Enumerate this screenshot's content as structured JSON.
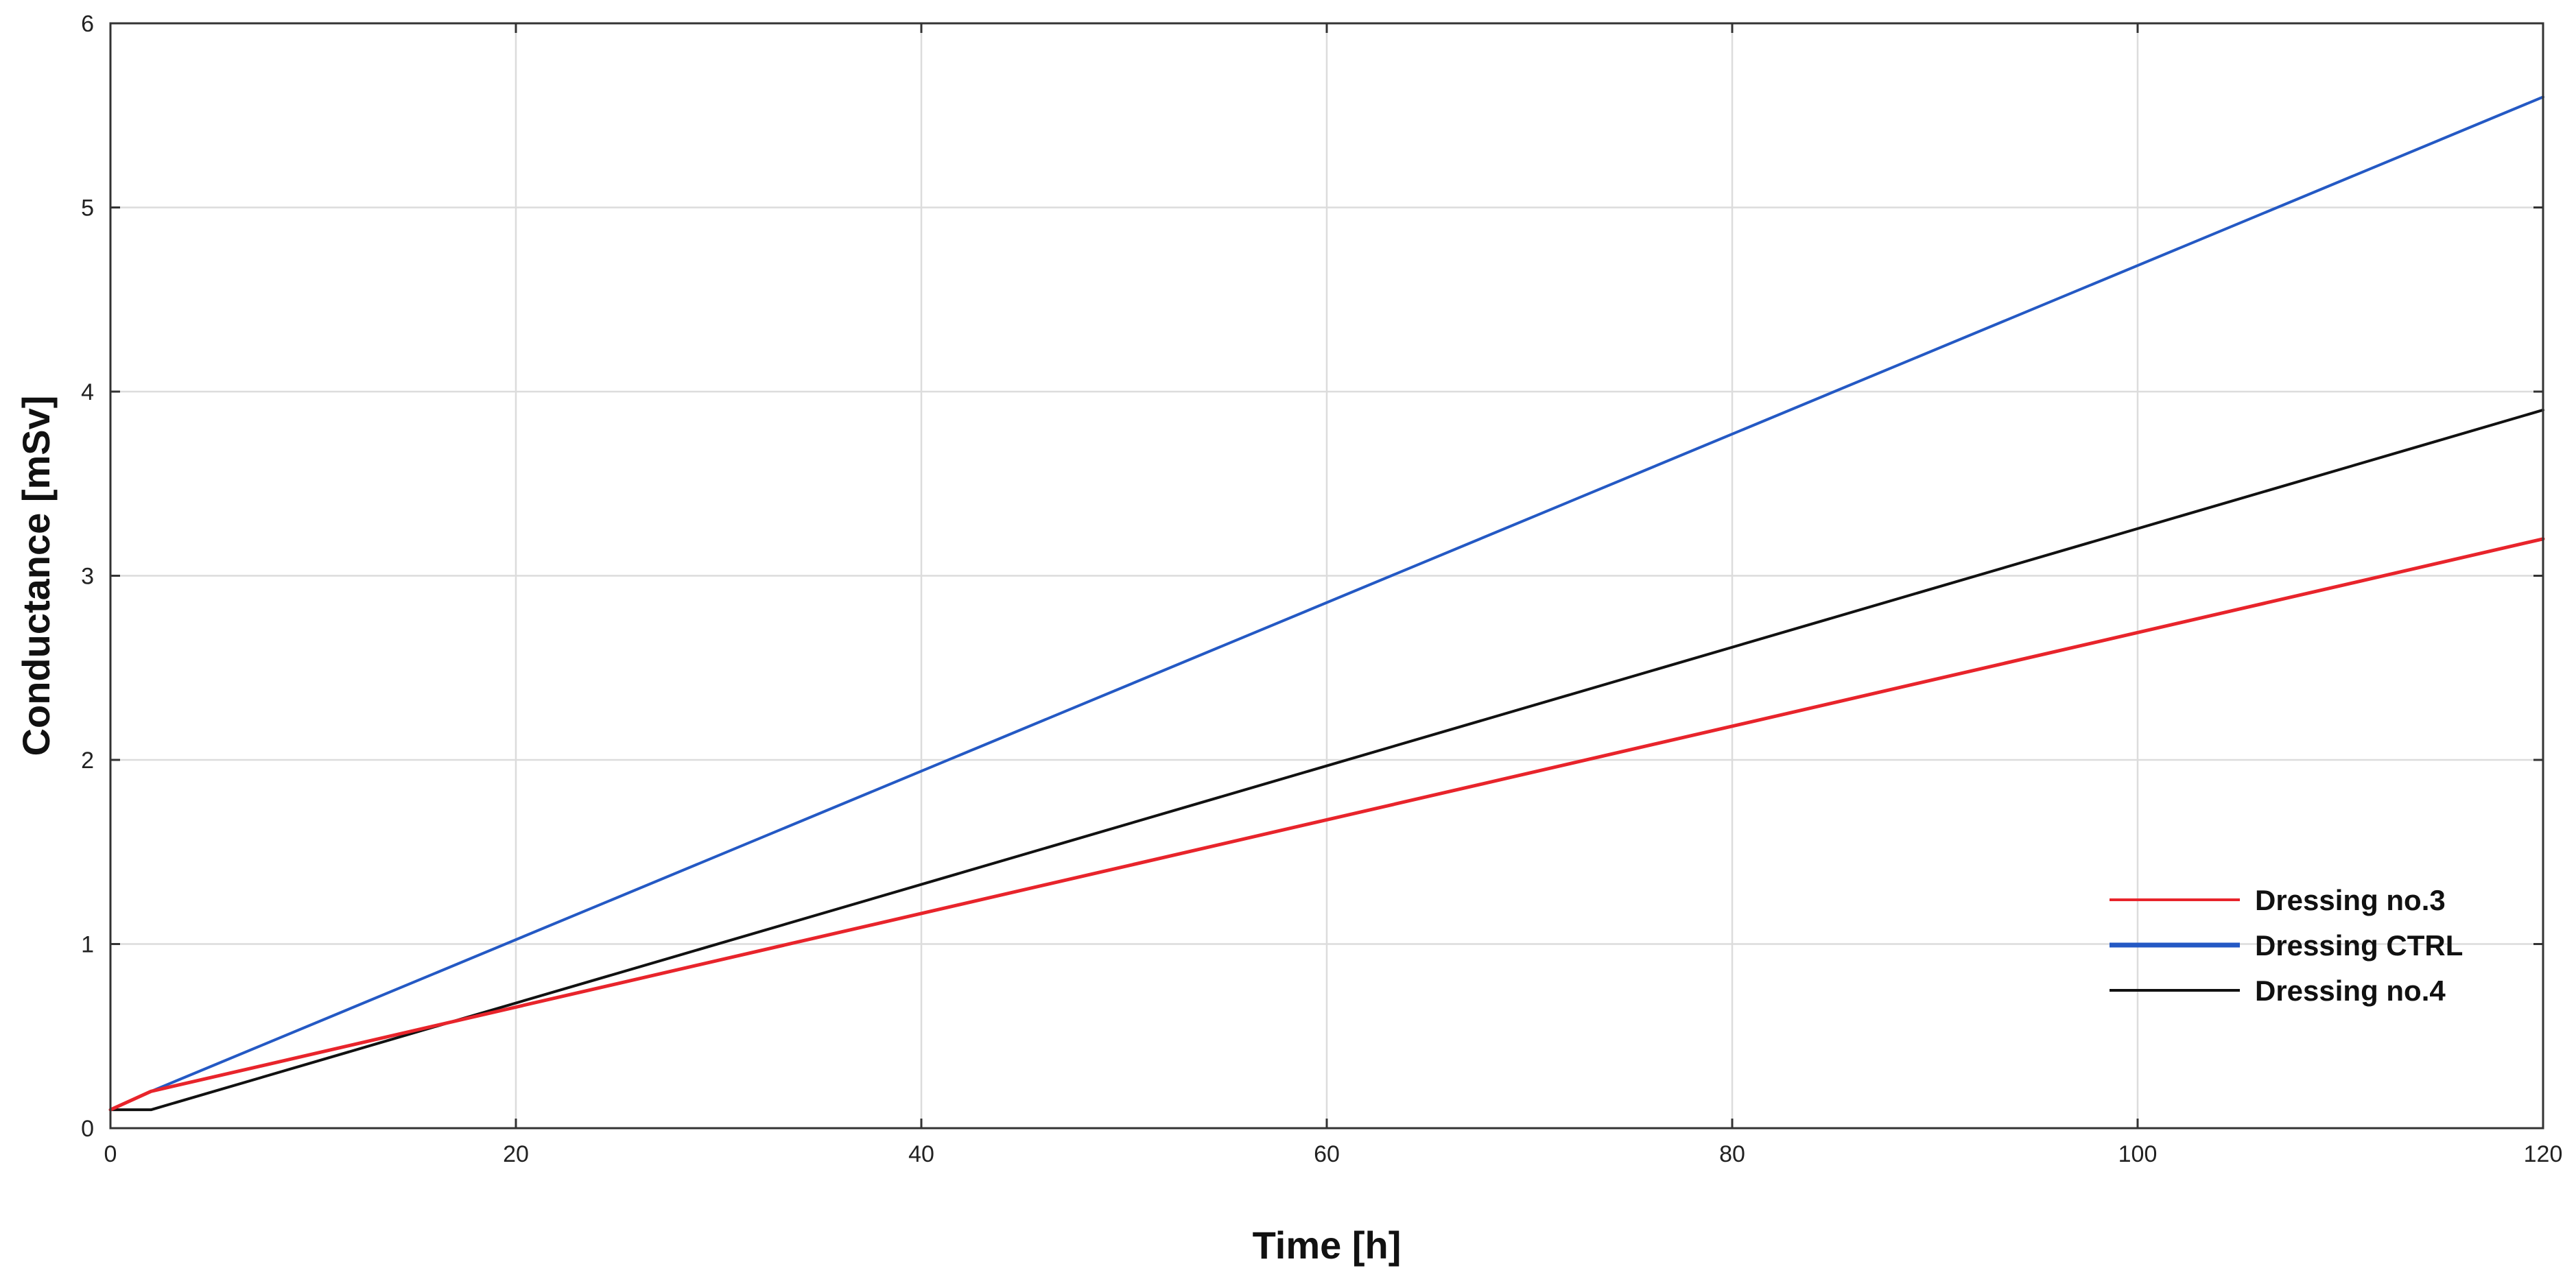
{
  "chart_data": {
    "type": "line",
    "title": "",
    "xlabel": "Time [h]",
    "ylabel": "Conductance [mSv]",
    "xlim": [
      0,
      120
    ],
    "ylim": [
      0,
      6
    ],
    "xticks": [
      0,
      20,
      40,
      60,
      80,
      100,
      120
    ],
    "yticks": [
      0,
      1,
      2,
      3,
      4,
      5,
      6
    ],
    "xtick_labels": [
      "0",
      "20",
      "40",
      "60",
      "80",
      "100",
      "120"
    ],
    "ytick_labels": [
      "0",
      "1",
      "2",
      "3",
      "4",
      "5",
      "6"
    ],
    "grid": true,
    "legend_position": "bottom-right",
    "series": [
      {
        "name": "Dressing no.3",
        "color": "#e8242b",
        "x": [
          0,
          2,
          120
        ],
        "y": [
          0.1,
          0.2,
          3.2
        ]
      },
      {
        "name": "Dressing CTRL",
        "color": "#2459c4",
        "x": [
          0,
          2,
          120
        ],
        "y": [
          0.1,
          0.2,
          5.6
        ]
      },
      {
        "name": "Dressing no.4",
        "color": "#111111",
        "x": [
          0,
          2,
          120
        ],
        "y": [
          0.1,
          0.1,
          3.9
        ]
      }
    ]
  }
}
